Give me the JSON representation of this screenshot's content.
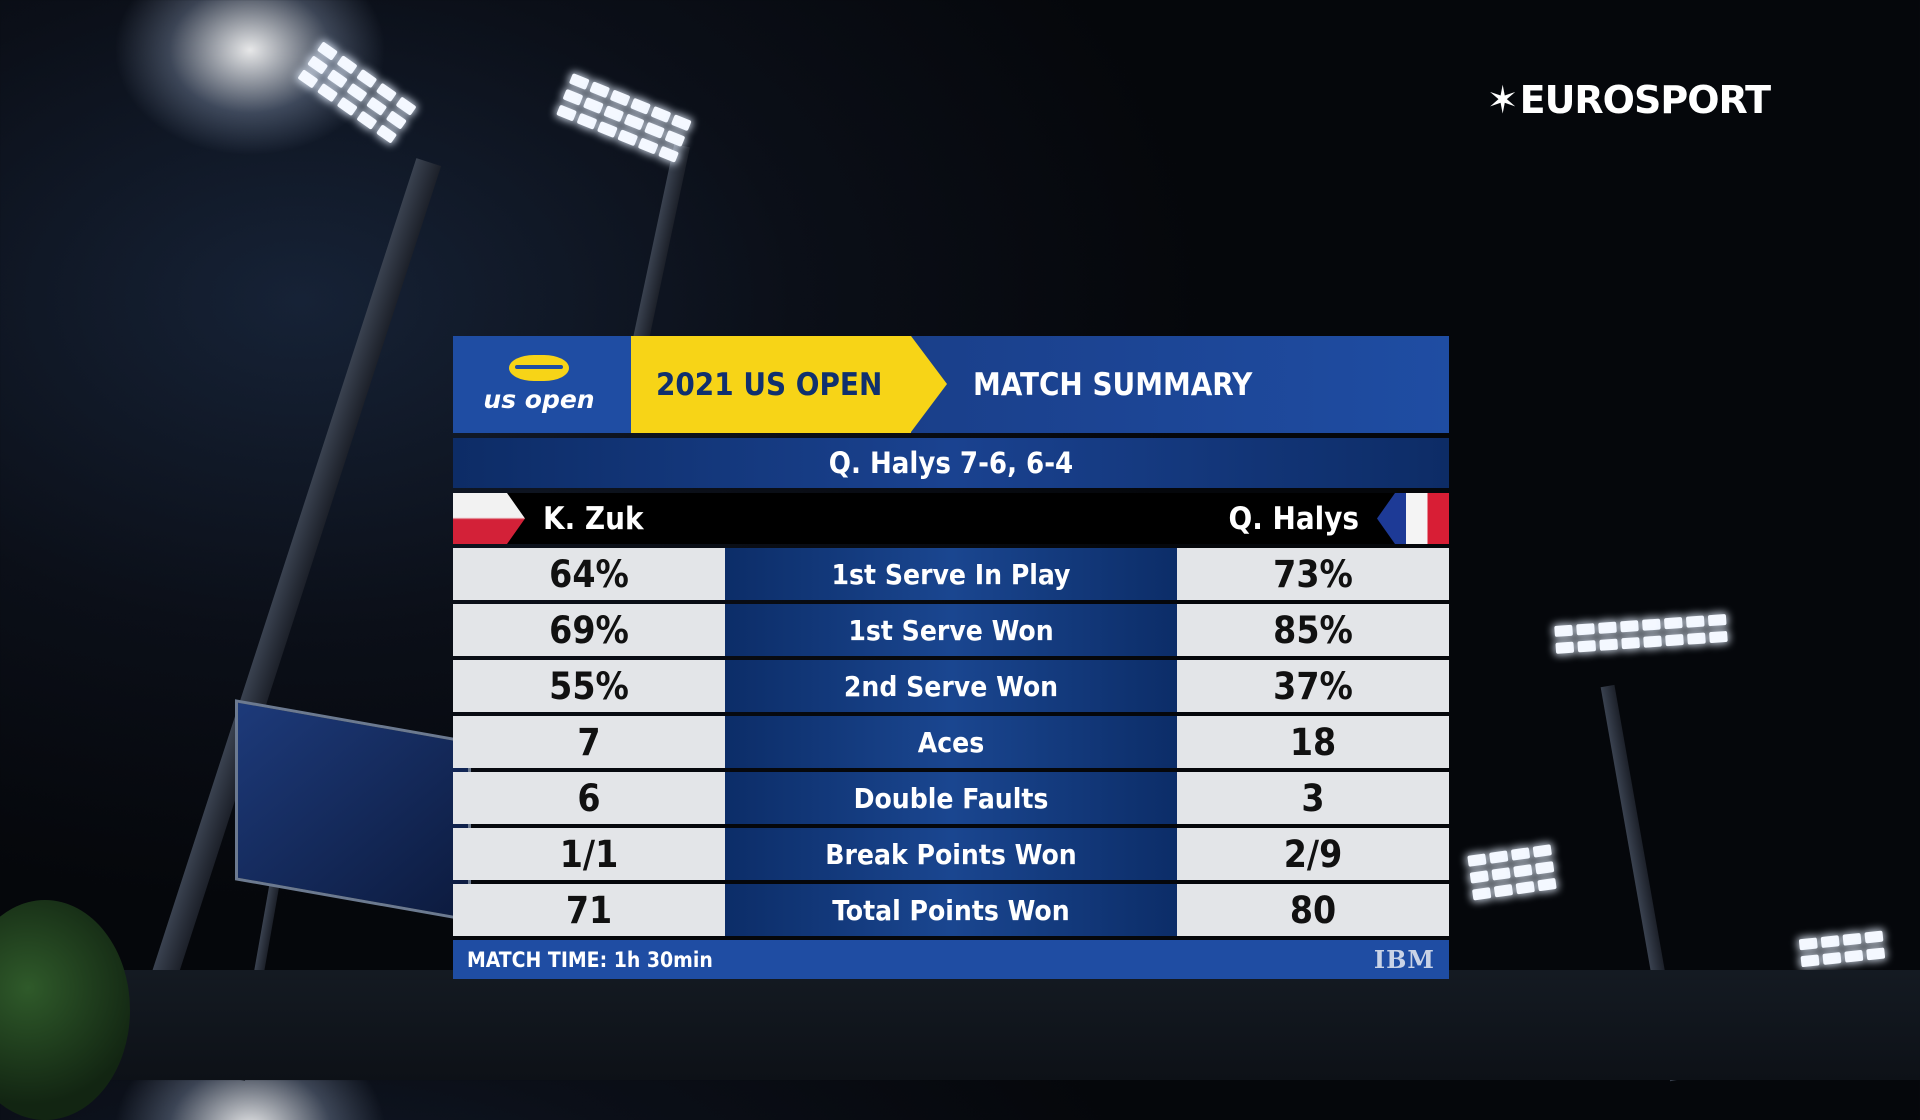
{
  "brand": "EUROSPORT",
  "header": {
    "logo_text": "us open",
    "tournament": "2021 US OPEN",
    "title": "MATCH SUMMARY"
  },
  "result": "Q. Halys  7-6, 6-4",
  "players": {
    "left": "K. Zuk",
    "right": "Q. Halys"
  },
  "stats": [
    {
      "left": "64%",
      "label": "1st Serve In Play",
      "right": "73%"
    },
    {
      "left": "69%",
      "label": "1st Serve Won",
      "right": "85%"
    },
    {
      "left": "55%",
      "label": "2nd Serve Won",
      "right": "37%"
    },
    {
      "left": "7",
      "label": "Aces",
      "right": "18"
    },
    {
      "left": "6",
      "label": "Double Faults",
      "right": "3"
    },
    {
      "left": "1/1",
      "label": "Break Points Won",
      "right": "2/9"
    },
    {
      "left": "71",
      "label": "Total Points Won",
      "right": "80"
    }
  ],
  "footer": {
    "match_time": "MATCH TIME: 1h 30min",
    "sponsor": "IBM"
  }
}
